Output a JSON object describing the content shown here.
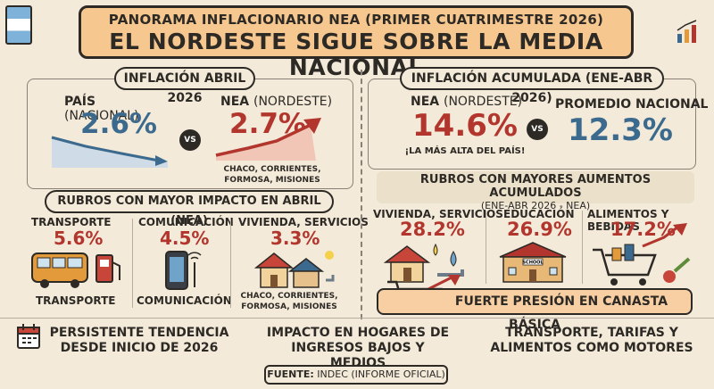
{
  "header": {
    "subtitle": "PANORAMA INFLACIONARIO NEA (PRIMER CUATRIMESTRE 2026)",
    "title": "EL NORDESTE SIGUE SOBRE LA MEDIA NACIONAL"
  },
  "left_panel": {
    "title": "INFLACIÓN ABRIL 2026",
    "pais_label": "PAÍS",
    "pais_qualifier": "(NACIONAL)",
    "pais_value": "2.6%",
    "vs": "VS",
    "nea_label": "NEA",
    "nea_qualifier": "(NORDESTE)",
    "nea_value": "2.7%",
    "nea_provinces": [
      "CHACO, CORRIENTES,",
      "FORMOSA, MISIONES"
    ]
  },
  "right_panel": {
    "title": "INFLACIÓN ACUMULADA (ENE-ABR 2026)",
    "nea_label": "NEA",
    "nea_qualifier": "(NORDESTE)",
    "nea_value": "14.6%",
    "nea_note": "¡LA MÁS ALTA DEL PAÍS!",
    "vs": "VS",
    "nacional_label": "PROMEDIO NACIONAL",
    "nacional_value": "12.3%"
  },
  "rubros_abril": {
    "title": "RUBROS CON MAYOR IMPACTO EN ABRIL (NEA)",
    "items": [
      {
        "label": "TRANSPORTE",
        "value": "5.6%",
        "caption": "TRANSPORTE"
      },
      {
        "label": "COMUNICACIÓN",
        "value": "4.5%",
        "caption": "COMUNICACIÓN"
      },
      {
        "label": "VIVIENDA, SERVICIOS",
        "value": "3.3%",
        "caption_1": "CHACO, CORRIENTES,",
        "caption_2": "FORMOSA, MISIONES"
      }
    ]
  },
  "rubros_acumulados": {
    "title": "RUBROS CON MAYORES AUMENTOS ACUMULADOS",
    "subtitle": "(ENE-ABR 2026 - NEA)",
    "items": [
      {
        "label": "VIVIENDA, SERVICIOS",
        "value": "28.2%"
      },
      {
        "label": "EDUCACIÓN",
        "value": "26.9%"
      },
      {
        "label": "ALIMENTOS Y BEBIDAS",
        "value": "17.2%"
      }
    ],
    "school_sign": "SCHOOL",
    "banner": "FUERTE PRESIÓN EN CANASTA BÁSICA"
  },
  "bottom": {
    "left_1": "PERSISTENTE TENDENCIA",
    "left_2": "DESDE INICIO DE 2026",
    "center_1": "IMPACTO EN HOGARES DE",
    "center_2": "INGRESOS BAJOS Y MEDIOS",
    "right_1": "TRANSPORTE, TARIFAS Y",
    "right_2": "ALIMENTOS COMO MOTORES"
  },
  "source": {
    "label": "FUENTE:",
    "text": "INDEC (INFORME OFICIAL)"
  },
  "colors": {
    "background": "#f3ead9",
    "header": "#f6c78f",
    "blue_value": "#3c6a8e",
    "red_value": "#b2362d",
    "banner": "#f7cfa3"
  }
}
